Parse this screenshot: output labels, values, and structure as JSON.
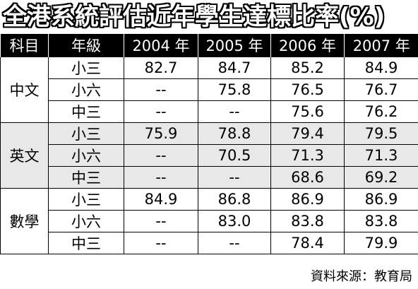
{
  "header": {
    "title": "全港系統評估近年學生達標比率(%)"
  },
  "table": {
    "columns": [
      "科目",
      "年級",
      "2004 年",
      "2005 年",
      "2006 年",
      "2007 年"
    ],
    "groups": [
      {
        "subject": "中文",
        "rows": [
          [
            "小三",
            "82.7",
            "84.7",
            "85.2",
            "84.9"
          ],
          [
            "小六",
            "--",
            "75.8",
            "76.5",
            "76.7"
          ],
          [
            "中三",
            "--",
            "--",
            "75.6",
            "76.2"
          ]
        ]
      },
      {
        "subject": "英文",
        "rows": [
          [
            "小三",
            "75.9",
            "78.8",
            "79.4",
            "79.5"
          ],
          [
            "小六",
            "--",
            "70.5",
            "71.3",
            "71.3"
          ],
          [
            "中三",
            "--",
            "--",
            "68.6",
            "69.2"
          ]
        ]
      },
      {
        "subject": "數學",
        "rows": [
          [
            "小三",
            "84.9",
            "86.8",
            "86.9",
            "86.9"
          ],
          [
            "小六",
            "--",
            "83.0",
            "83.8",
            "83.8"
          ],
          [
            "中三",
            "--",
            "--",
            "78.4",
            "79.9"
          ]
        ]
      }
    ]
  },
  "footer": {
    "source": "資料來源：教育局"
  }
}
